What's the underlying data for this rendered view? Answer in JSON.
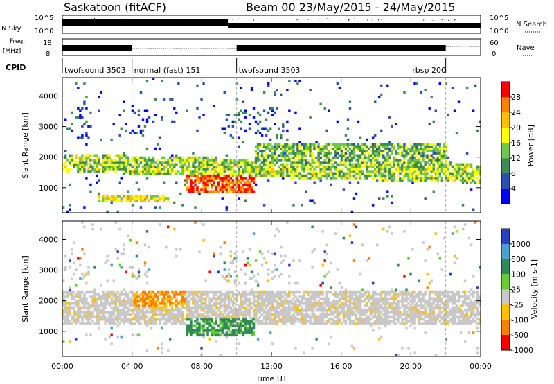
{
  "header": {
    "station": "Saskatoon (fitACF)",
    "beam_date": "Beam 00 23/May/2015 - 24/May/2015"
  },
  "top_panels": {
    "nsky_label": "N.Sky",
    "nsky_left_ticks": [
      "10^5",
      "10^0"
    ],
    "nsky_right_ticks": [
      "10^5",
      "10^0"
    ],
    "nsearch_label": "N.Search",
    "freq_label_line1": "Freq.",
    "freq_label_line2": "[MHz]",
    "freq_ticks": [
      "18",
      "8"
    ],
    "nave_ticks": [
      "60",
      "0"
    ],
    "nave_label": "Nave",
    "cpid_label": "CPID",
    "cpid_segments": [
      {
        "label": "twofsound 3503",
        "start": 0.0,
        "end": 4.0
      },
      {
        "label": "normal (fast) 151",
        "start": 4.0,
        "end": 10.0
      },
      {
        "label": "twofsound 3503",
        "start": 10.0,
        "end": 22.0
      },
      {
        "label": "rbsp 200",
        "start": 22.0,
        "end": 24.0
      }
    ]
  },
  "chart_data": [
    {
      "type": "heatmap",
      "parameter": "Power",
      "ylabel": "Slant Range [km]",
      "ylim": [
        180,
        4600
      ],
      "xlim": [
        0,
        24
      ],
      "yticks": [
        "1000",
        "2000",
        "3000",
        "4000"
      ],
      "colorbar_label": "Power [dB]",
      "colorbar_ticks": [
        "4",
        "8",
        "12",
        "16",
        "20",
        "24",
        "28"
      ],
      "colorbar_range": [
        0,
        30
      ],
      "colors": [
        "#0000ff",
        "#2d4fb0",
        "#3c8c54",
        "#6fc64c",
        "#ffff00",
        "#ffc000",
        "#ff8000",
        "#ff0000"
      ],
      "features": [
        {
          "name": "main band",
          "t_start": 0,
          "t_end": 24,
          "range_km": [
            1300,
            1900
          ],
          "power_db": 14
        },
        {
          "name": "strong echo",
          "t_start": 7,
          "t_end": 11,
          "range_km": [
            800,
            1400
          ],
          "power_db": 28
        },
        {
          "name": "low band",
          "t_start": 2,
          "t_end": 6,
          "range_km": [
            500,
            750
          ],
          "power_db": 18
        },
        {
          "name": "upper band",
          "t_start": 11,
          "t_end": 22,
          "range_km": [
            1800,
            2400
          ],
          "power_db": 12
        }
      ]
    },
    {
      "type": "heatmap",
      "parameter": "Velocity",
      "ylabel": "Slant Range [km]",
      "xlabel": "Time UT",
      "ylim": [
        180,
        4600
      ],
      "xlim": [
        0,
        24
      ],
      "yticks": [
        "1000",
        "2000",
        "3000",
        "4000"
      ],
      "xticks": [
        "00:00",
        "04:00",
        "08:00",
        "12:00",
        "16:00",
        "20:00",
        "00:00"
      ],
      "colorbar_label": "Velocity [m s-1]",
      "colorbar_ticks": [
        "1000",
        "500",
        "100",
        "25",
        "-25",
        "-100",
        "-500",
        "-1000"
      ],
      "colors": [
        "#2840c0",
        "#4aa0d0",
        "#2e8b57",
        "#66cc33",
        "#c8c8c8",
        "#ffc000",
        "#ff8000",
        "#ff0000"
      ],
      "features": [
        {
          "name": "ground scatter",
          "t_start": 0,
          "t_end": 24,
          "range_km": [
            1200,
            2300
          ],
          "velocity": 0
        },
        {
          "name": "positive flow",
          "t_start": 7,
          "t_end": 11,
          "range_km": [
            800,
            1400
          ],
          "velocity": 300
        },
        {
          "name": "negative flow",
          "t_start": 4,
          "t_end": 7,
          "range_km": [
            1800,
            2300
          ],
          "velocity": -300
        }
      ]
    }
  ]
}
